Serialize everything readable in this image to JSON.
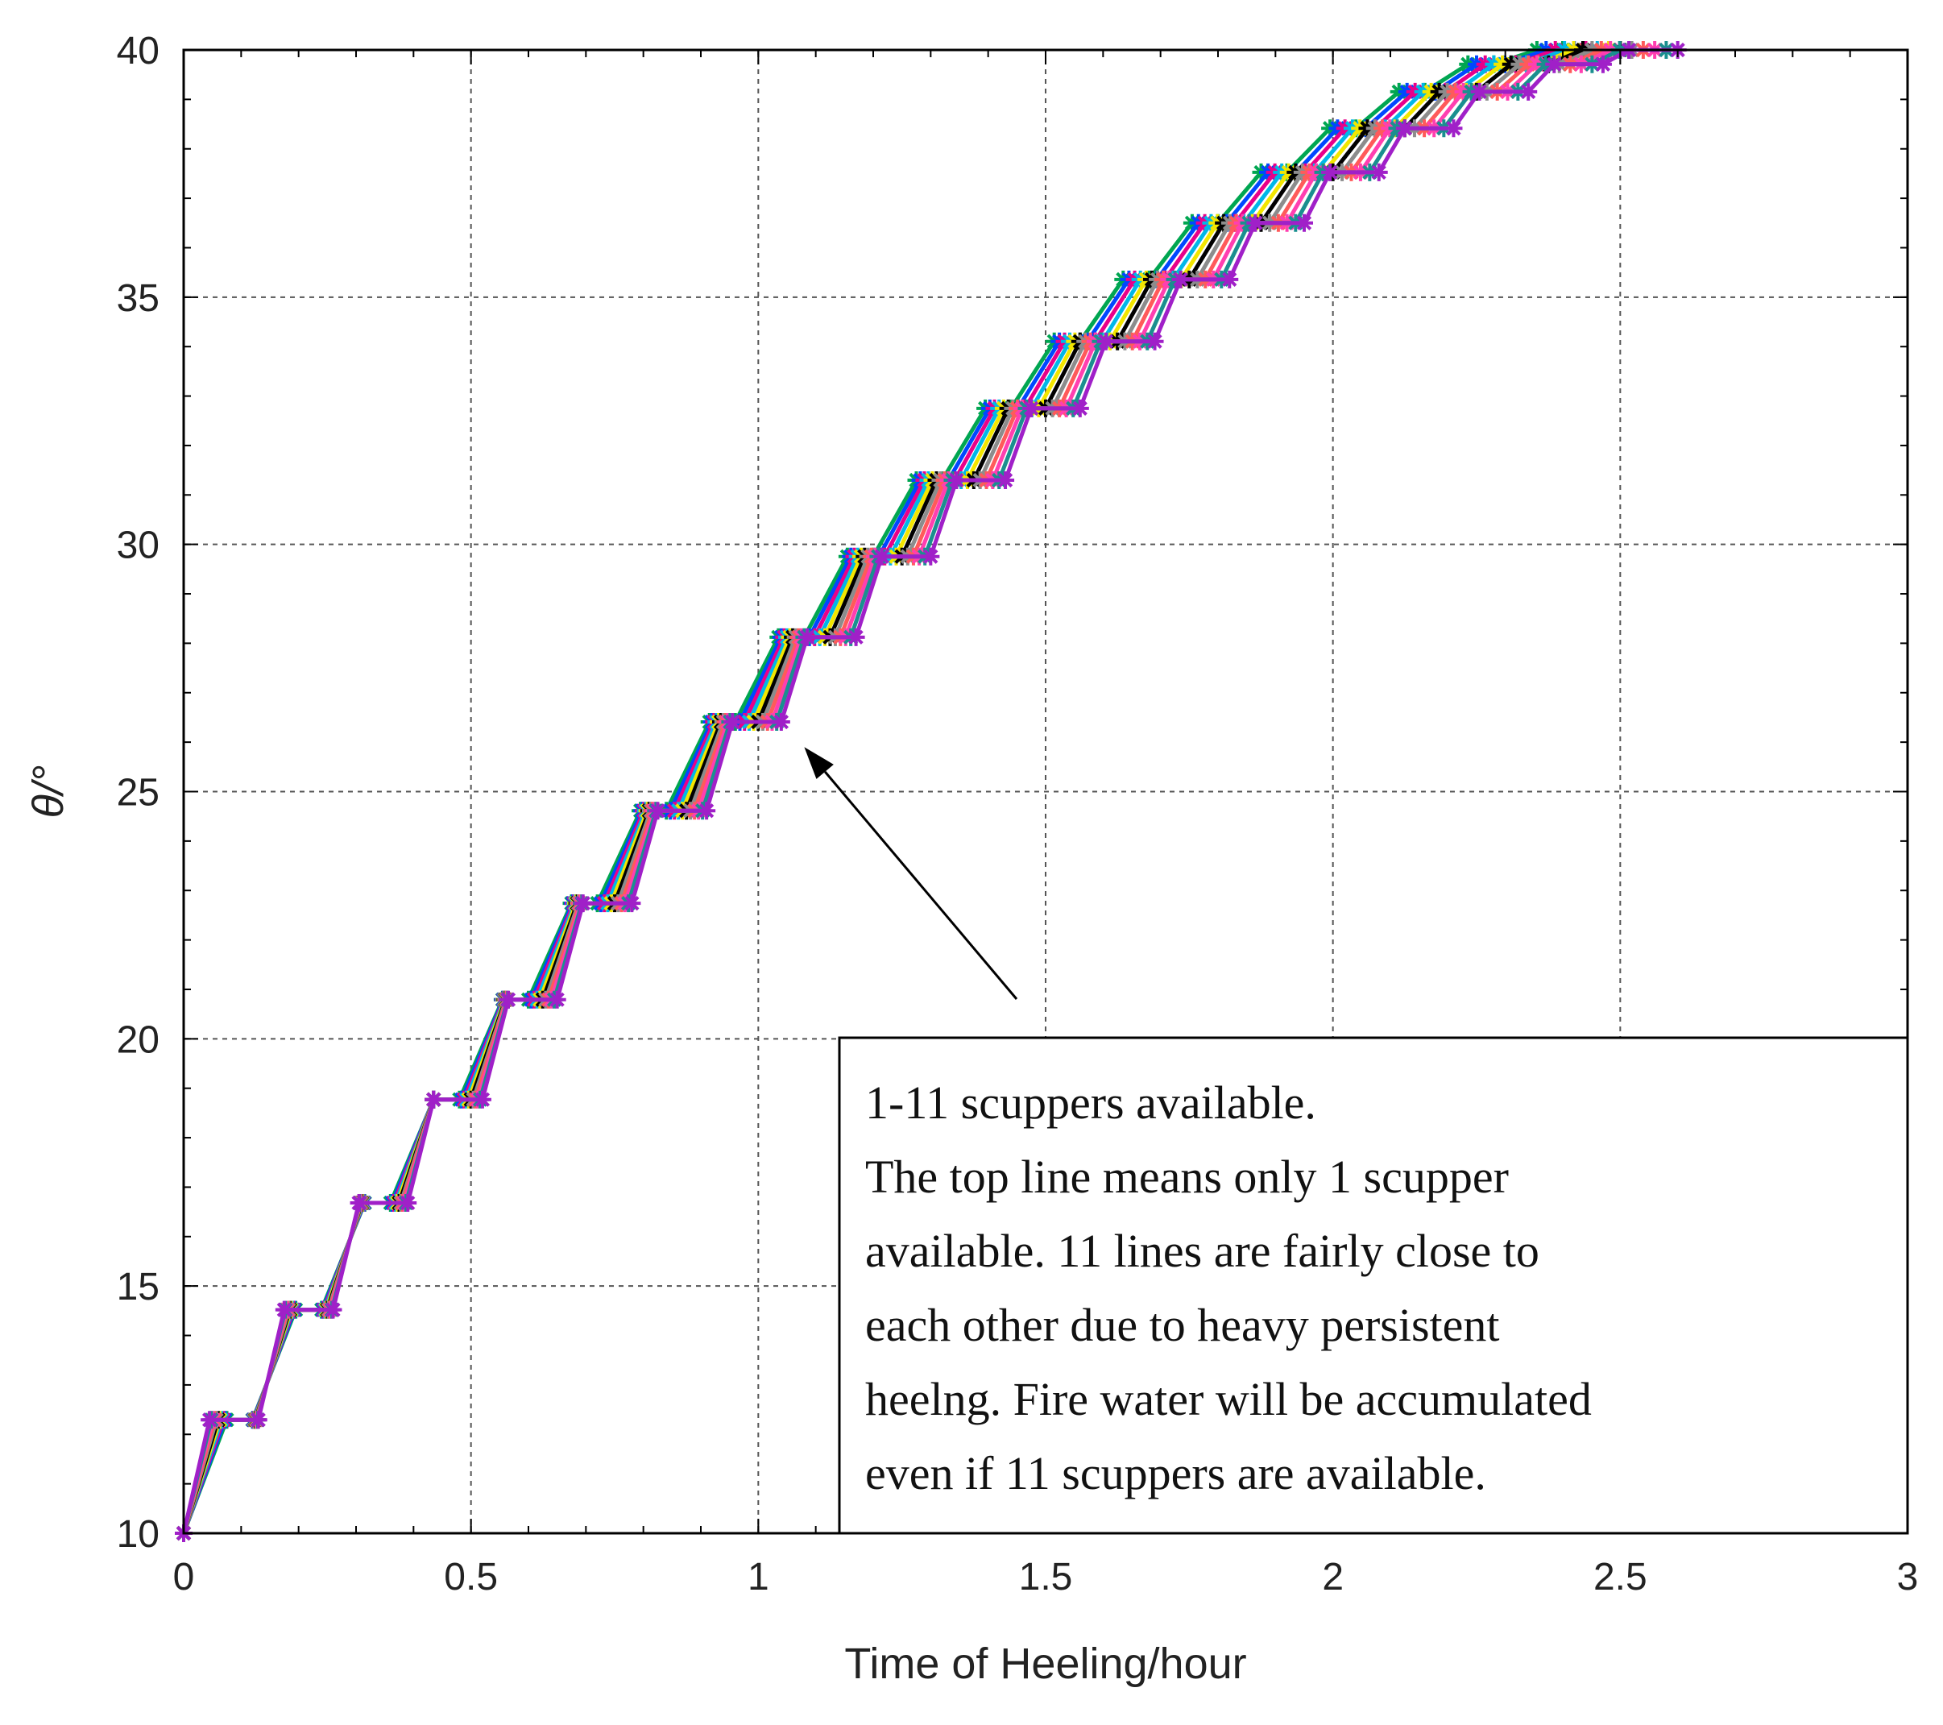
{
  "chart_data": {
    "type": "line",
    "title": "",
    "xlabel": "Time of Heeling/hour",
    "ylabel": "θ/°",
    "xlim": [
      0,
      3
    ],
    "ylim": [
      10,
      40
    ],
    "xticks": [
      "0",
      "0.5",
      "1",
      "1.5",
      "2",
      "2.5",
      "3"
    ],
    "yticks": [
      "10",
      "15",
      "20",
      "25",
      "30",
      "35",
      "40"
    ],
    "grid": true,
    "step_count": 20,
    "series": [
      {
        "color": "#00a651",
        "marker": "asterisk",
        "x_end": 2.4
      },
      {
        "color": "#0047ff",
        "marker": "asterisk",
        "x_end": 2.42
      },
      {
        "color": "#e8008a",
        "marker": "asterisk",
        "x_end": 2.44
      },
      {
        "color": "#00b7e8",
        "marker": "asterisk",
        "x_end": 2.46
      },
      {
        "color": "#f2e600",
        "marker": "asterisk",
        "x_end": 2.48
      },
      {
        "color": "#000000",
        "marker": "asterisk",
        "x_end": 2.5
      },
      {
        "color": "#8c8c8c",
        "marker": "asterisk",
        "x_end": 2.52
      },
      {
        "color": "#ff5a5a",
        "marker": "asterisk",
        "x_end": 2.54
      },
      {
        "color": "#ff3fb0",
        "marker": "asterisk",
        "x_end": 2.56
      },
      {
        "color": "#1a8f8f",
        "marker": "asterisk",
        "x_end": 2.58
      },
      {
        "color": "#a020c8",
        "marker": "asterisk",
        "x_end": 2.6
      }
    ],
    "annotation": {
      "lines": [
        "1-11 scuppers available.",
        "The top line means only 1 scupper",
        "available. 11 lines are fairly close to",
        "each other due to heavy persistent",
        "heelng. Fire water will be accumulated",
        "even if 11 scuppers are available."
      ],
      "arrow_target": {
        "x": 1.08,
        "y": 25.9
      }
    }
  }
}
